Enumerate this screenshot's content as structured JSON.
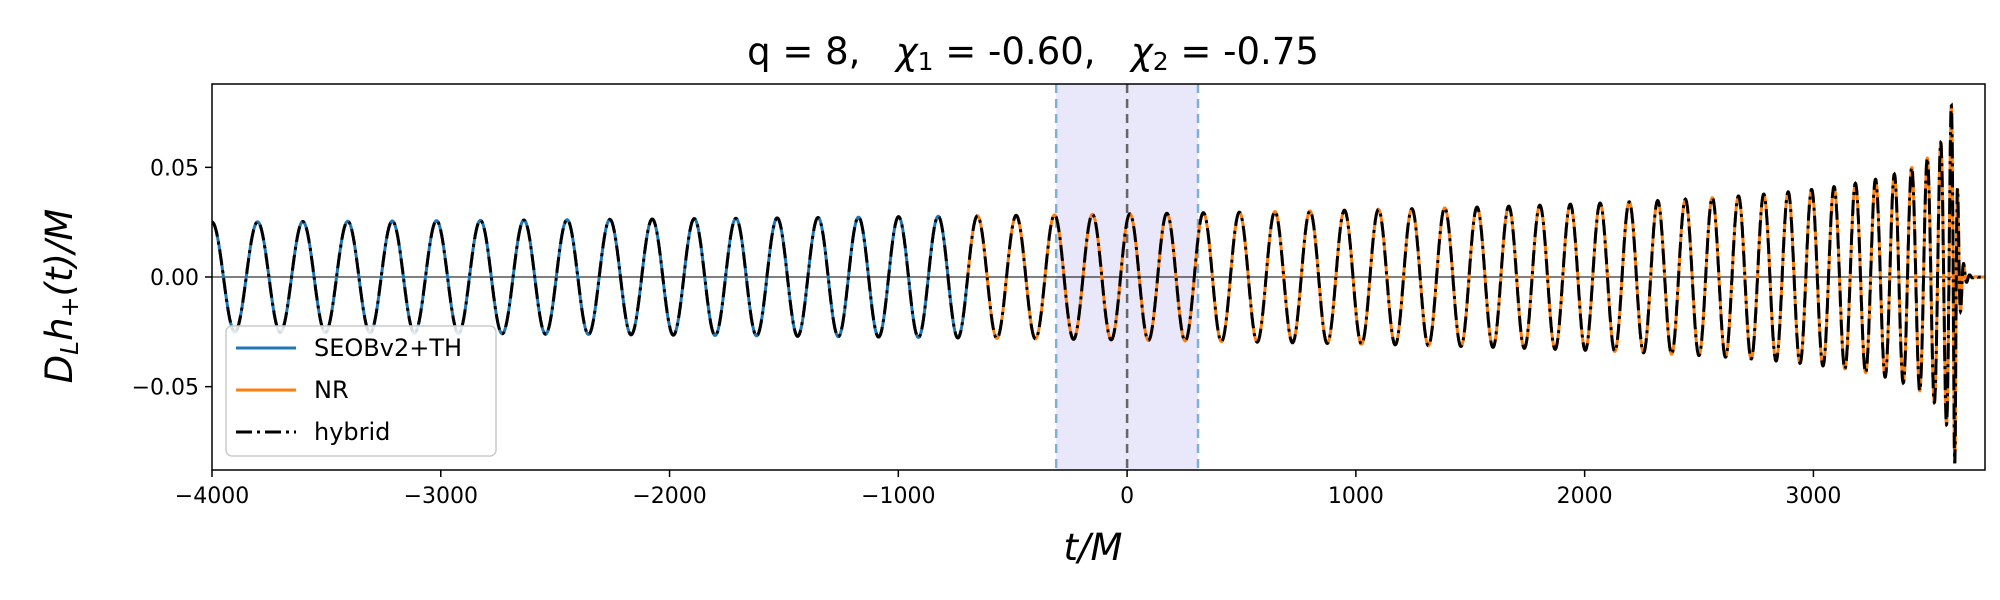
{
  "chart_data": {
    "type": "line",
    "title": "q = 8,   χ₁ = -0.60,   χ₂ = -0.75",
    "xlabel": "t/M",
    "ylabel": "D_L h_+(t)/M",
    "xlim": [
      -4000,
      3750
    ],
    "ylim": [
      -0.088,
      0.088
    ],
    "xticks": [
      -4000,
      -3000,
      -2000,
      -1000,
      0,
      1000,
      2000,
      3000
    ],
    "xtick_labels": [
      "−4000",
      "−3000",
      "−2000",
      "−1000",
      "0",
      "1000",
      "2000",
      "3000"
    ],
    "yticks": [
      0.05,
      0.0,
      -0.05
    ],
    "ytick_labels": [
      "0.05",
      "0.00",
      "−0.05"
    ],
    "grid": false,
    "legend_position": "lower-left",
    "hybridization_window": {
      "start": -310,
      "end": 310,
      "center": 0
    },
    "waveform": {
      "initial_amplitude": 0.025,
      "amplitude_at_t_3000": 0.04,
      "peak_time": 3620,
      "peak_amplitude": 0.085,
      "initial_period": 200,
      "period_at_t_3000": 100,
      "ringdown_end": 3700
    },
    "series": [
      {
        "name": "SEOBv2+TH",
        "color": "#1f77b4",
        "line_style": "solid",
        "t_range": [
          -4000,
          -700
        ]
      },
      {
        "name": "NR",
        "color": "#ff7f0e",
        "line_style": "solid",
        "t_range": [
          -700,
          3750
        ]
      },
      {
        "name": "hybrid",
        "color": "#000000",
        "line_style": "dash-dot",
        "t_range": [
          -4000,
          3750
        ]
      }
    ]
  }
}
